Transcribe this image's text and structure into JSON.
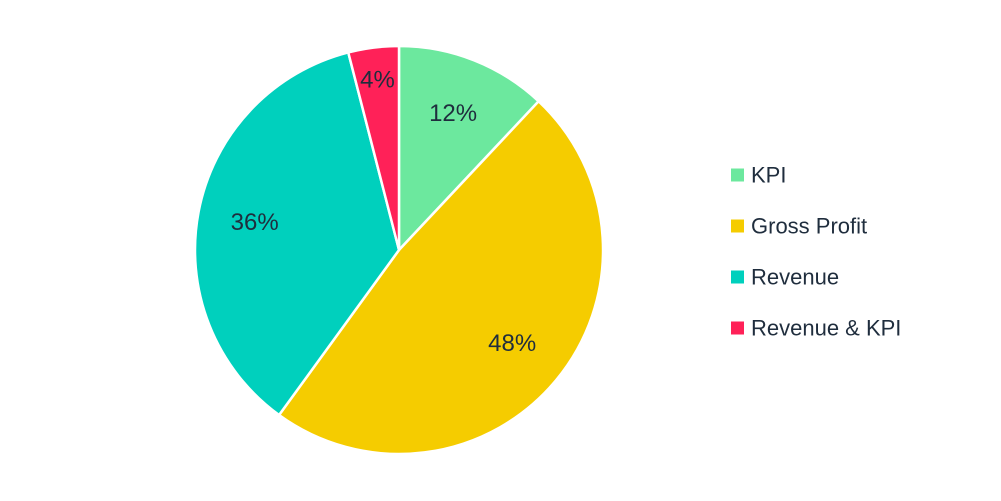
{
  "chart_data": {
    "type": "pie",
    "categories": [
      "KPI",
      "Gross Profit",
      "Revenue",
      "Revenue & KPI"
    ],
    "values": [
      12,
      48,
      36,
      4
    ],
    "data_labels": [
      "12%",
      "48%",
      "36%",
      "4%"
    ],
    "colors": [
      "#6ce89e",
      "#f5cc00",
      "#00d0bd",
      "#ff2158"
    ],
    "legend": {
      "placement": "right",
      "entries": [
        "KPI",
        "Gross Profit",
        "Revenue",
        "Revenue & KPI"
      ]
    },
    "start_angle": "12 o'clock",
    "direction": "clockwise"
  }
}
